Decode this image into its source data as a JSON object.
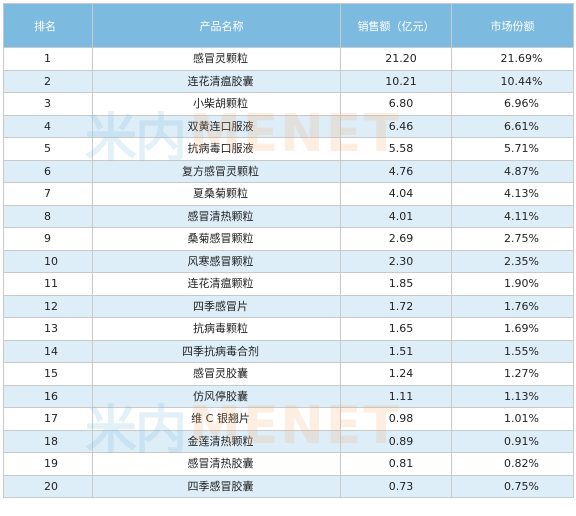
{
  "table": {
    "headers": {
      "rank": "排名",
      "name": "产品名称",
      "sales": "销售额（亿元）",
      "share": "市场份额"
    },
    "rows": [
      {
        "rank": "1",
        "name": "感冒灵颗粒",
        "sales": "21.20",
        "share": "21.69%"
      },
      {
        "rank": "2",
        "name": "连花清瘟胶囊",
        "sales": "10.21",
        "share": "10.44%"
      },
      {
        "rank": "3",
        "name": "小柴胡颗粒",
        "sales": "6.80",
        "share": "6.96%"
      },
      {
        "rank": "4",
        "name": "双黄连口服液",
        "sales": "6.46",
        "share": "6.61%"
      },
      {
        "rank": "5",
        "name": "抗病毒口服液",
        "sales": "5.58",
        "share": "5.71%"
      },
      {
        "rank": "6",
        "name": "复方感冒灵颗粒",
        "sales": "4.76",
        "share": "4.87%"
      },
      {
        "rank": "7",
        "name": "夏桑菊颗粒",
        "sales": "4.04",
        "share": "4.13%"
      },
      {
        "rank": "8",
        "name": "感冒清热颗粒",
        "sales": "4.01",
        "share": "4.11%"
      },
      {
        "rank": "9",
        "name": "桑菊感冒颗粒",
        "sales": "2.69",
        "share": "2.75%"
      },
      {
        "rank": "10",
        "name": "风寒感冒颗粒",
        "sales": "2.30",
        "share": "2.35%"
      },
      {
        "rank": "11",
        "name": "连花清瘟颗粒",
        "sales": "1.85",
        "share": "1.90%"
      },
      {
        "rank": "12",
        "name": "四季感冒片",
        "sales": "1.72",
        "share": "1.76%"
      },
      {
        "rank": "13",
        "name": "抗病毒颗粒",
        "sales": "1.65",
        "share": "1.69%"
      },
      {
        "rank": "14",
        "name": "四季抗病毒合剂",
        "sales": "1.51",
        "share": "1.55%"
      },
      {
        "rank": "15",
        "name": "感冒灵胶囊",
        "sales": "1.24",
        "share": "1.27%"
      },
      {
        "rank": "16",
        "name": "仿风停胶囊",
        "sales": "1.11",
        "share": "1.13%"
      },
      {
        "rank": "17",
        "name": "维 C 银翘片",
        "sales": "0.98",
        "share": "1.01%"
      },
      {
        "rank": "18",
        "name": "金莲清热颗粒",
        "sales": "0.89",
        "share": "0.91%"
      },
      {
        "rank": "19",
        "name": "感冒清热胶囊",
        "sales": "0.81",
        "share": "0.82%"
      },
      {
        "rank": "20",
        "name": "四季感冒胶囊",
        "sales": "0.73",
        "share": "0.75%"
      }
    ]
  },
  "watermark": {
    "chinese": "米内",
    "english": "MENET"
  },
  "colors": {
    "header_bg": "#7dbadf",
    "header_text": "#ffffff",
    "stripe": "#deeef8",
    "border": "#c9c9c9"
  }
}
